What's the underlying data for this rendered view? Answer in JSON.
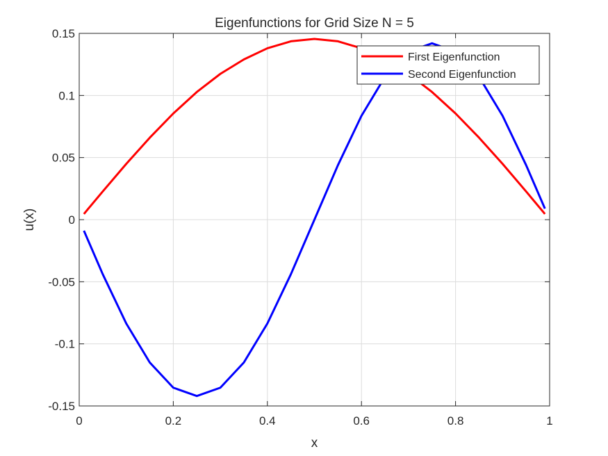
{
  "chart_data": {
    "type": "line",
    "title": "Eigenfunctions for Grid Size N = 5",
    "xlabel": "x",
    "ylabel": "u(x)",
    "xlim": [
      0,
      1
    ],
    "ylim": [
      -0.15,
      0.15
    ],
    "xticks": [
      0,
      0.2,
      0.4,
      0.6,
      0.8,
      1
    ],
    "xtick_labels": [
      "0",
      "0.2",
      "0.4",
      "0.6",
      "0.8",
      "1"
    ],
    "yticks": [
      -0.15,
      -0.1,
      -0.05,
      0,
      0.05,
      0.1,
      0.15
    ],
    "ytick_labels": [
      "-0.15",
      "-0.1",
      "-0.05",
      "0",
      "0.05",
      "0.1",
      "0.15"
    ],
    "grid": true,
    "legend_position": "top-right",
    "series": [
      {
        "name": "First Eigenfunction",
        "color": "#ff0000",
        "x": [
          0.01,
          0.05,
          0.1,
          0.15,
          0.2,
          0.25,
          0.3,
          0.35,
          0.4,
          0.45,
          0.5,
          0.55,
          0.6,
          0.65,
          0.7,
          0.75,
          0.8,
          0.85,
          0.9,
          0.95,
          0.99
        ],
        "y": [
          0.0046,
          0.0227,
          0.0449,
          0.066,
          0.0855,
          0.1028,
          0.1174,
          0.129,
          0.138,
          0.1436,
          0.1455,
          0.1436,
          0.138,
          0.129,
          0.1174,
          0.1028,
          0.0855,
          0.066,
          0.0449,
          0.0227,
          0.0046
        ]
      },
      {
        "name": "Second Eigenfunction",
        "color": "#0000ff",
        "x": [
          0.01,
          0.05,
          0.1,
          0.15,
          0.2,
          0.25,
          0.3,
          0.35,
          0.4,
          0.45,
          0.5,
          0.55,
          0.6,
          0.65,
          0.7,
          0.75,
          0.8,
          0.85,
          0.9,
          0.95,
          0.99
        ],
        "y": [
          -0.0089,
          -0.0439,
          -0.0836,
          -0.115,
          -0.1353,
          -0.142,
          -0.1353,
          -0.115,
          -0.0836,
          -0.0439,
          0.0,
          0.0439,
          0.0836,
          0.115,
          0.1353,
          0.142,
          0.1353,
          0.115,
          0.0836,
          0.0439,
          0.0089
        ]
      }
    ]
  }
}
